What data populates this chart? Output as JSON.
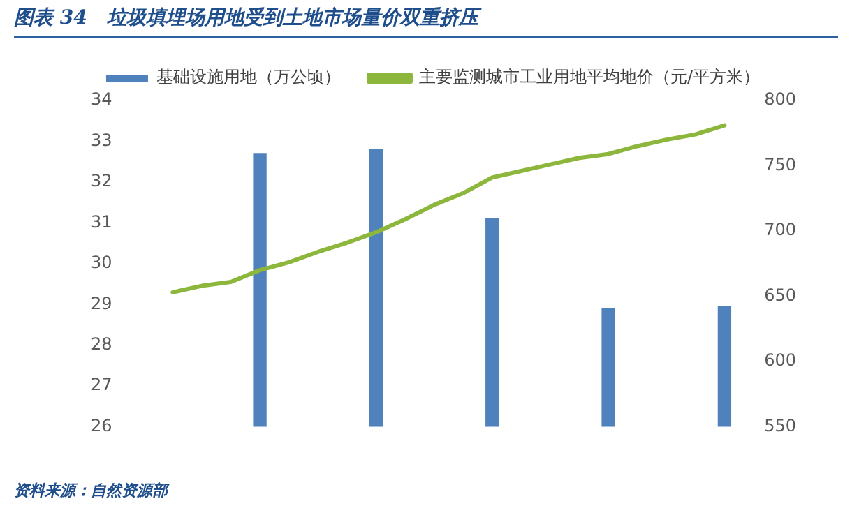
{
  "chart_data": {
    "type": "bar",
    "title": "图表 34　垃圾填埋场用地受到土地市场量价双重挤压",
    "annotations": [
      "资料来源：自然资源部"
    ],
    "categories": [
      null,
      null,
      null,
      null,
      null,
      null,
      null,
      null,
      null,
      null,
      null,
      null,
      null,
      null,
      null,
      null,
      null,
      null,
      null,
      null
    ],
    "series": [
      {
        "name": "基础设施用地（万公顷）",
        "color": "#4f81bd",
        "values": [
          null,
          null,
          null,
          32.7,
          null,
          null,
          null,
          32.8,
          null,
          null,
          null,
          31.1,
          null,
          null,
          null,
          28.9,
          null,
          null,
          null,
          28.95
        ]
      },
      {
        "name": "主要监测城市工业用地平均地价（元/平方米）",
        "type": "line",
        "axis": "y2",
        "color": "#8db63c",
        "values": [
          653,
          658,
          661,
          670,
          676,
          684,
          691,
          699,
          709,
          720,
          729,
          741,
          746,
          751,
          756,
          759,
          765,
          770,
          774,
          781
        ]
      }
    ],
    "ylim": [
      26,
      34
    ],
    "yticks": [
      26,
      27,
      28,
      29,
      30,
      31,
      32,
      33,
      34
    ],
    "y2lim": [
      550,
      800
    ],
    "y2ticks": [
      550,
      600,
      650,
      700,
      750,
      800
    ],
    "grid": false,
    "legend": "top",
    "tick_labels": "y",
    "marker": "none",
    "line_style": "solid"
  }
}
